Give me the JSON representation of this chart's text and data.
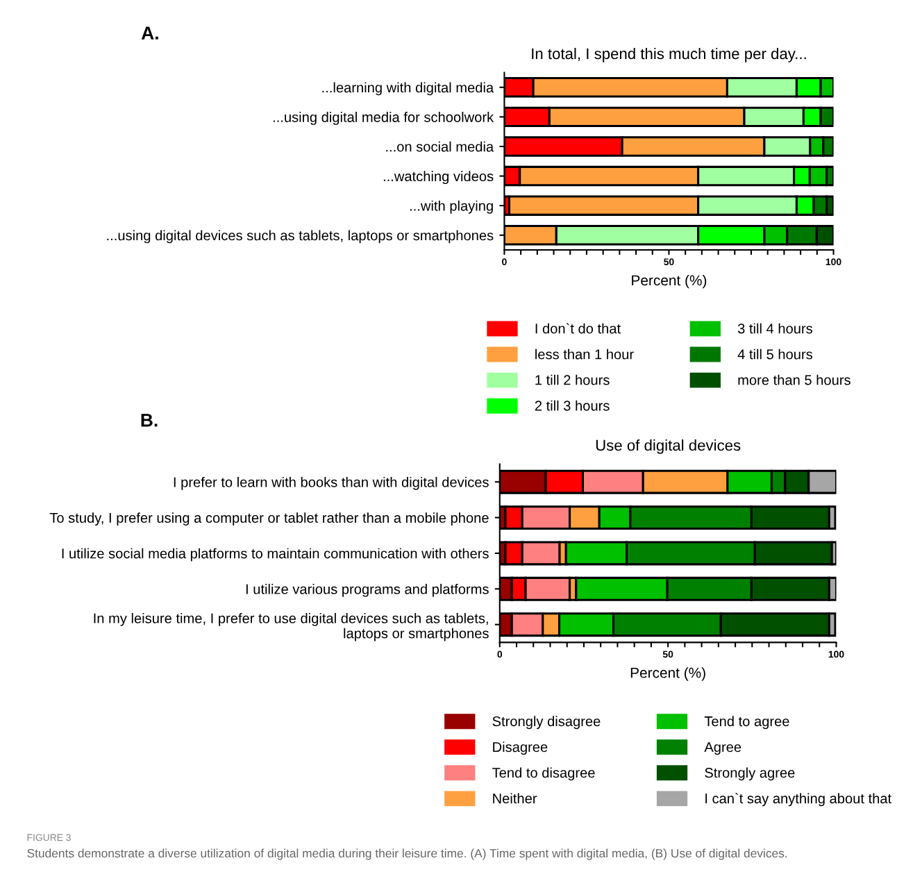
{
  "chart_data": [
    {
      "type": "bar",
      "orientation": "horizontal",
      "stacked": true,
      "title": "In total, I spend this much time per day...",
      "xlabel": "Percent (%)",
      "annotations": [
        "A."
      ],
      "categories": [
        "...learning with digital media",
        "...using digital media for schoolwork",
        "...on social media",
        "...watching videos",
        "...with playing",
        "...using digital devices such as tablets, laptops or smartphones"
      ],
      "xlim": [
        0,
        100
      ],
      "xticks": [
        0,
        {
          "value": 5,
          "label": null
        },
        {
          "value": 10,
          "label": null
        },
        {
          "value": 15,
          "label": null
        },
        {
          "value": 20,
          "label": null
        },
        {
          "value": 25,
          "label": null
        },
        {
          "value": 30,
          "label": null
        },
        {
          "value": 35,
          "label": null
        },
        {
          "value": 40,
          "label": null
        },
        {
          "value": 45,
          "label": null
        },
        50,
        {
          "value": 55,
          "label": null
        },
        {
          "value": 60,
          "label": null
        },
        {
          "value": 65,
          "label": null
        },
        {
          "value": 70,
          "label": null
        },
        {
          "value": 75,
          "label": null
        },
        {
          "value": 80,
          "label": null
        },
        {
          "value": 85,
          "label": null
        },
        {
          "value": 90,
          "label": null
        },
        {
          "value": 95,
          "label": null
        },
        100
      ],
      "grid": false,
      "legend": "bottom",
      "series": [
        {
          "name": "I don`t do that",
          "color": "#ff0000",
          "values": [
            8.8,
            13.7,
            35.8,
            4.7,
            1.5,
            0
          ]
        },
        {
          "name": "less than 1 hour",
          "color": "#ffa040",
          "values": [
            58.9,
            59.2,
            43.2,
            54.2,
            57.4,
            15.8
          ]
        },
        {
          "name": "1 till 2 hours",
          "color": "#a0ffa0",
          "values": [
            21.1,
            18.0,
            13.9,
            29.1,
            29.9,
            43.1
          ]
        },
        {
          "name": "2 till 3 hours",
          "color": "#00ff00",
          "values": [
            7.3,
            5.2,
            0,
            4.8,
            5.2,
            20.1
          ]
        },
        {
          "name": "3 till 4 hours",
          "color": "#00c000",
          "values": [
            3.9,
            0,
            4.0,
            5.1,
            0,
            6.9
          ]
        },
        {
          "name": "4 till 5 hours",
          "color": "#007800",
          "values": [
            0,
            3.9,
            3.1,
            2.1,
            3.9,
            9.0
          ]
        },
        {
          "name": "more than 5 hours",
          "color": "#004f00",
          "values": [
            0,
            0,
            0,
            0,
            2.1,
            5.1
          ]
        }
      ]
    },
    {
      "type": "bar",
      "orientation": "horizontal",
      "stacked": true,
      "title": "Use of digital devices",
      "xlabel": "Percent (%)",
      "annotations": [
        "B.",
        "FIGURE 3",
        "Students demonstrate a diverse utilization of digital media during their leisure time. (A) Time spent with digital media, (B) Use of digital devices."
      ],
      "categories": [
        "I prefer to learn with books than with digital devices",
        "To study, I prefer using a computer or tablet rather than a mobile phone",
        "I utilize social media platforms to maintain communication with others",
        "I utilize various programs and platforms",
        "In my leisure time, I prefer to use digital devices such as tablets,\nlaptops or smartphones"
      ],
      "xlim": [
        0,
        100
      ],
      "xticks": [
        0,
        {
          "value": 5,
          "label": null
        },
        {
          "value": 10,
          "label": null
        },
        {
          "value": 15,
          "label": null
        },
        {
          "value": 20,
          "label": null
        },
        {
          "value": 25,
          "label": null
        },
        {
          "value": 30,
          "label": null
        },
        {
          "value": 35,
          "label": null
        },
        {
          "value": 40,
          "label": null
        },
        {
          "value": 45,
          "label": null
        },
        50,
        {
          "value": 55,
          "label": null
        },
        {
          "value": 60,
          "label": null
        },
        {
          "value": 65,
          "label": null
        },
        {
          "value": 70,
          "label": null
        },
        {
          "value": 75,
          "label": null
        },
        {
          "value": 80,
          "label": null
        },
        {
          "value": 85,
          "label": null
        },
        {
          "value": 90,
          "label": null
        },
        {
          "value": 95,
          "label": null
        },
        100
      ],
      "grid": false,
      "legend": "bottom",
      "series": [
        {
          "name": "Strongly disagree",
          "color": "#990000",
          "values": [
            13.7,
            1.7,
            1.7,
            3.6,
            3.6
          ]
        },
        {
          "name": "Disagree",
          "color": "#ff0000",
          "values": [
            11.0,
            5.0,
            5.0,
            4.1,
            0
          ]
        },
        {
          "name": "Tend to disagree",
          "color": "#ff8080",
          "values": [
            17.9,
            14.1,
            11.1,
            13.1,
            9.2
          ]
        },
        {
          "name": "Neither",
          "color": "#ffa040",
          "values": [
            25.1,
            8.8,
            1.9,
            1.9,
            4.9
          ]
        },
        {
          "name": "Tend to agree",
          "color": "#00c000",
          "values": [
            13.1,
            9.2,
            18.0,
            27.1,
            16.1
          ]
        },
        {
          "name": "Agree",
          "color": "#008000",
          "values": [
            4.0,
            36.0,
            38.1,
            25.0,
            31.9
          ]
        },
        {
          "name": "Strongly agree",
          "color": "#005000",
          "values": [
            7.0,
            23.1,
            22.9,
            23.1,
            32.2
          ]
        },
        {
          "name": "I can`t say anything about that",
          "color": "#a6a6a6",
          "values": [
            8.2,
            1.8,
            1.3,
            2.1,
            1.8
          ]
        }
      ]
    }
  ]
}
